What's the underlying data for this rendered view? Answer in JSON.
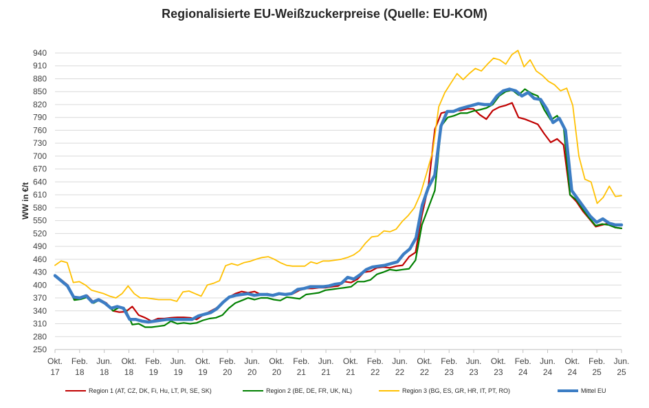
{
  "chart_data": {
    "type": "line",
    "title": "Regionalisierte EU-Weißzuckerpreise (Quelle: EU-KOM)",
    "ylabel": "WW in €/t",
    "xlabel": "",
    "ylim": [
      250,
      940
    ],
    "yticks": [
      250,
      280,
      310,
      340,
      370,
      400,
      430,
      460,
      490,
      520,
      550,
      580,
      610,
      640,
      670,
      700,
      730,
      760,
      790,
      820,
      850,
      880,
      910,
      940
    ],
    "grid": "horizontal",
    "legend_position": "bottom",
    "x_start": "Okt. 17",
    "x_end": "Jun. 25",
    "xtick_labels": [
      {
        "month": "Okt.",
        "year": "17"
      },
      {
        "month": "Feb.",
        "year": "18"
      },
      {
        "month": "Jun.",
        "year": "18"
      },
      {
        "month": "Okt.",
        "year": "18"
      },
      {
        "month": "Feb.",
        "year": "19"
      },
      {
        "month": "Jun.",
        "year": "19"
      },
      {
        "month": "Okt.",
        "year": "19"
      },
      {
        "month": "Feb.",
        "year": "20"
      },
      {
        "month": "Jun.",
        "year": "20"
      },
      {
        "month": "Okt.",
        "year": "20"
      },
      {
        "month": "Feb.",
        "year": "21"
      },
      {
        "month": "Jun.",
        "year": "21"
      },
      {
        "month": "Okt.",
        "year": "21"
      },
      {
        "month": "Feb.",
        "year": "22"
      },
      {
        "month": "Jun.",
        "year": "22"
      },
      {
        "month": "Okt.",
        "year": "22"
      },
      {
        "month": "Feb.",
        "year": "23"
      },
      {
        "month": "Jun.",
        "year": "23"
      },
      {
        "month": "Okt.",
        "year": "23"
      },
      {
        "month": "Feb.",
        "year": "24"
      },
      {
        "month": "Jun.",
        "year": "24"
      },
      {
        "month": "Okt.",
        "year": "24"
      },
      {
        "month": "Feb.",
        "year": "25"
      },
      {
        "month": "Jun.",
        "year": "25"
      }
    ],
    "series": [
      {
        "name": "Region 1 (AT, CZ, DK, Fi, Hu, LT, Pl, SE, SK)",
        "color": "#C00000",
        "values": [
          422,
          412,
          400,
          368,
          370,
          376,
          360,
          366,
          358,
          340,
          337,
          338,
          350,
          330,
          324,
          316,
          322,
          322,
          324,
          325,
          325,
          324,
          320,
          330,
          338,
          346,
          358,
          372,
          380,
          385,
          382,
          385,
          378,
          380,
          376,
          380,
          378,
          380,
          388,
          392,
          392,
          394,
          394,
          396,
          398,
          408,
          406,
          414,
          430,
          432,
          440,
          442,
          440,
          444,
          446,
          466,
          476,
          562,
          630,
          762,
          800,
          804,
          806,
          806,
          810,
          810,
          796,
          786,
          806,
          814,
          818,
          824,
          790,
          786,
          780,
          774,
          752,
          732,
          740,
          726,
          610,
          594,
          572,
          554,
          536,
          540,
          544,
          534,
          532
        ]
      },
      {
        "name": "Region 2 (BE, DE, FR, UK, NL)",
        "color": "#008000",
        "values": [
          420,
          410,
          398,
          365,
          367,
          372,
          358,
          366,
          356,
          340,
          348,
          342,
          308,
          310,
          302,
          302,
          304,
          306,
          316,
          310,
          312,
          310,
          312,
          318,
          322,
          324,
          330,
          346,
          358,
          364,
          370,
          366,
          370,
          370,
          366,
          364,
          372,
          370,
          368,
          378,
          380,
          382,
          388,
          390,
          392,
          394,
          396,
          408,
          408,
          412,
          425,
          430,
          436,
          434,
          436,
          438,
          458,
          540,
          580,
          620,
          770,
          790,
          794,
          800,
          800,
          805,
          808,
          812,
          820,
          840,
          850,
          854,
          842,
          856,
          846,
          840,
          808,
          784,
          794,
          770,
          610,
          598,
          576,
          556,
          538,
          542,
          540,
          534,
          532
        ]
      },
      {
        "name": "Region 3 (BG, ES, GR, HR, IT, PT, RO)",
        "color": "#FFC000",
        "values": [
          446,
          456,
          452,
          406,
          408,
          400,
          388,
          384,
          380,
          374,
          370,
          380,
          398,
          380,
          370,
          370,
          368,
          366,
          366,
          366,
          362,
          384,
          386,
          380,
          374,
          400,
          404,
          410,
          445,
          450,
          446,
          452,
          455,
          460,
          464,
          466,
          460,
          452,
          446,
          444,
          444,
          444,
          454,
          450,
          456,
          456,
          458,
          460,
          464,
          470,
          480,
          498,
          512,
          514,
          526,
          524,
          530,
          548,
          562,
          580,
          612,
          660,
          710,
          815,
          848,
          870,
          892,
          878,
          892,
          904,
          898,
          914,
          928,
          924,
          914,
          936,
          946,
          908,
          924,
          898,
          888,
          874,
          866,
          852,
          858,
          818,
          700,
          646,
          640,
          590,
          604,
          630,
          606,
          608
        ]
      },
      {
        "name": "Mittel EU",
        "color": "#3C7DC4",
        "values": [
          422,
          410,
          398,
          372,
          370,
          375,
          360,
          366,
          358,
          346,
          350,
          346,
          320,
          320,
          316,
          314,
          316,
          318,
          320,
          320,
          320,
          320,
          320,
          328,
          332,
          336,
          345,
          360,
          372,
          376,
          378,
          380,
          376,
          378,
          378,
          376,
          380,
          378,
          380,
          390,
          392,
          396,
          396,
          396,
          398,
          402,
          404,
          418,
          414,
          424,
          436,
          442,
          444,
          446,
          450,
          454,
          472,
          484,
          510,
          586,
          628,
          656,
          770,
          804,
          804,
          810,
          814,
          818,
          822,
          820,
          820,
          840,
          852,
          856,
          852,
          840,
          848,
          834,
          832,
          810,
          778,
          788,
          760,
          620,
          600,
          580,
          560,
          546,
          554,
          544,
          540,
          540
        ]
      }
    ]
  }
}
